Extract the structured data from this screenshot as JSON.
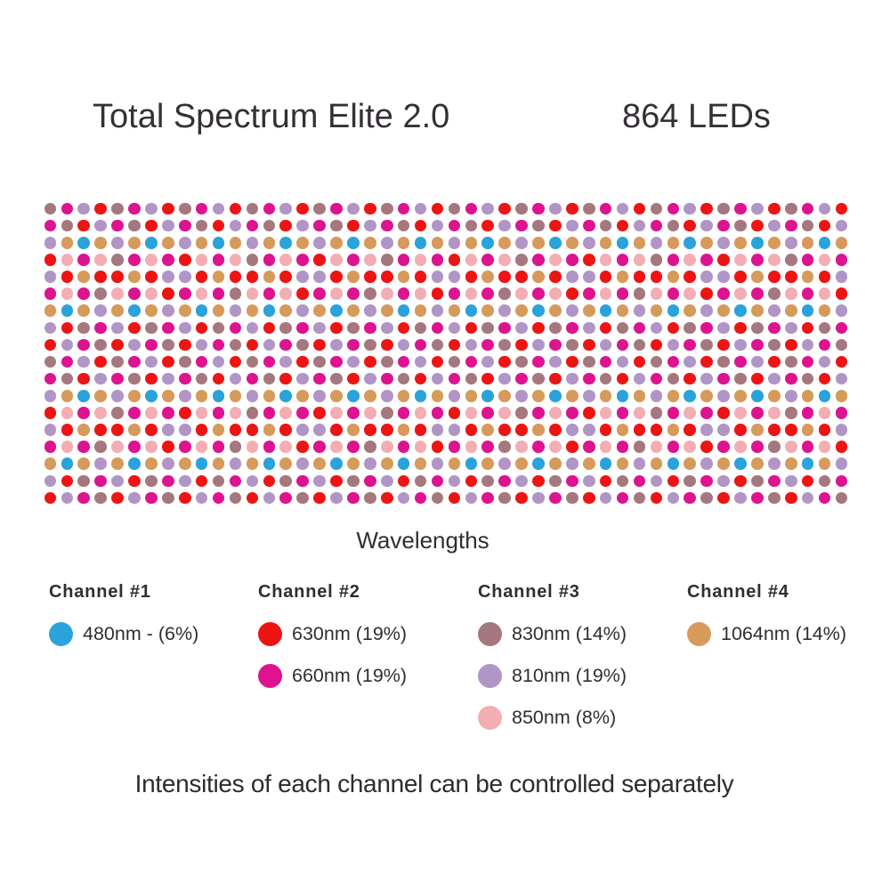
{
  "title": "Total Spectrum Elite 2.0",
  "led_count_label": "864 LEDs",
  "grid_caption": "Wavelengths",
  "footer": "Intensities of each channel can be controlled separately",
  "colors": {
    "blue": "#2AA2DC",
    "red": "#EE1414",
    "magenta": "#DD1390",
    "mauve": "#A4787E",
    "lavender": "#B095C6",
    "pink": "#F3AEB4",
    "tan": "#D69A5B"
  },
  "grid": {
    "rows": 18,
    "cols": 48,
    "row_patterns": [
      [
        "mauve",
        "magenta",
        "lavender",
        "red"
      ],
      [
        "magenta",
        "mauve",
        "red",
        "lavender"
      ],
      [
        "lavender",
        "tan",
        "blue",
        "tan"
      ],
      [
        "red",
        "pink",
        "magenta",
        "pink",
        "mauve",
        "magenta",
        "pink",
        "magenta"
      ],
      [
        "lavender",
        "red",
        "tan",
        "red",
        "red",
        "tan",
        "red",
        "lavender"
      ],
      [
        "magenta",
        "pink",
        "magenta",
        "mauve",
        "pink",
        "magenta",
        "pink",
        "red"
      ],
      [
        "tan",
        "blue",
        "tan",
        "lavender"
      ],
      [
        "lavender",
        "red",
        "mauve",
        "magenta"
      ],
      [
        "red",
        "lavender",
        "magenta",
        "mauve"
      ]
    ]
  },
  "legend": {
    "channels": [
      {
        "header": "Channel #1",
        "items": [
          {
            "color": "blue",
            "label": "480nm - (6%)"
          }
        ]
      },
      {
        "header": "Channel #2",
        "items": [
          {
            "color": "red",
            "label": "630nm (19%)"
          },
          {
            "color": "magenta",
            "label": "660nm (19%)"
          }
        ]
      },
      {
        "header": "Channel #3",
        "items": [
          {
            "color": "mauve",
            "label": "830nm (14%)"
          },
          {
            "color": "lavender",
            "label": "810nm (19%)"
          },
          {
            "color": "pink",
            "label": "850nm (8%)"
          }
        ]
      },
      {
        "header": "Channel #4",
        "items": [
          {
            "color": "tan",
            "label": "1064nm (14%)"
          }
        ]
      }
    ]
  },
  "chart_data": {
    "type": "table",
    "title": "Total Spectrum Elite 2.0",
    "total_leds": 864,
    "columns": [
      "channel",
      "wavelength_nm",
      "intensity_percent"
    ],
    "rows": [
      [
        1,
        480,
        6
      ],
      [
        2,
        630,
        19
      ],
      [
        2,
        660,
        19
      ],
      [
        3,
        830,
        14
      ],
      [
        3,
        810,
        19
      ],
      [
        3,
        850,
        8
      ],
      [
        4,
        1064,
        14
      ]
    ]
  }
}
